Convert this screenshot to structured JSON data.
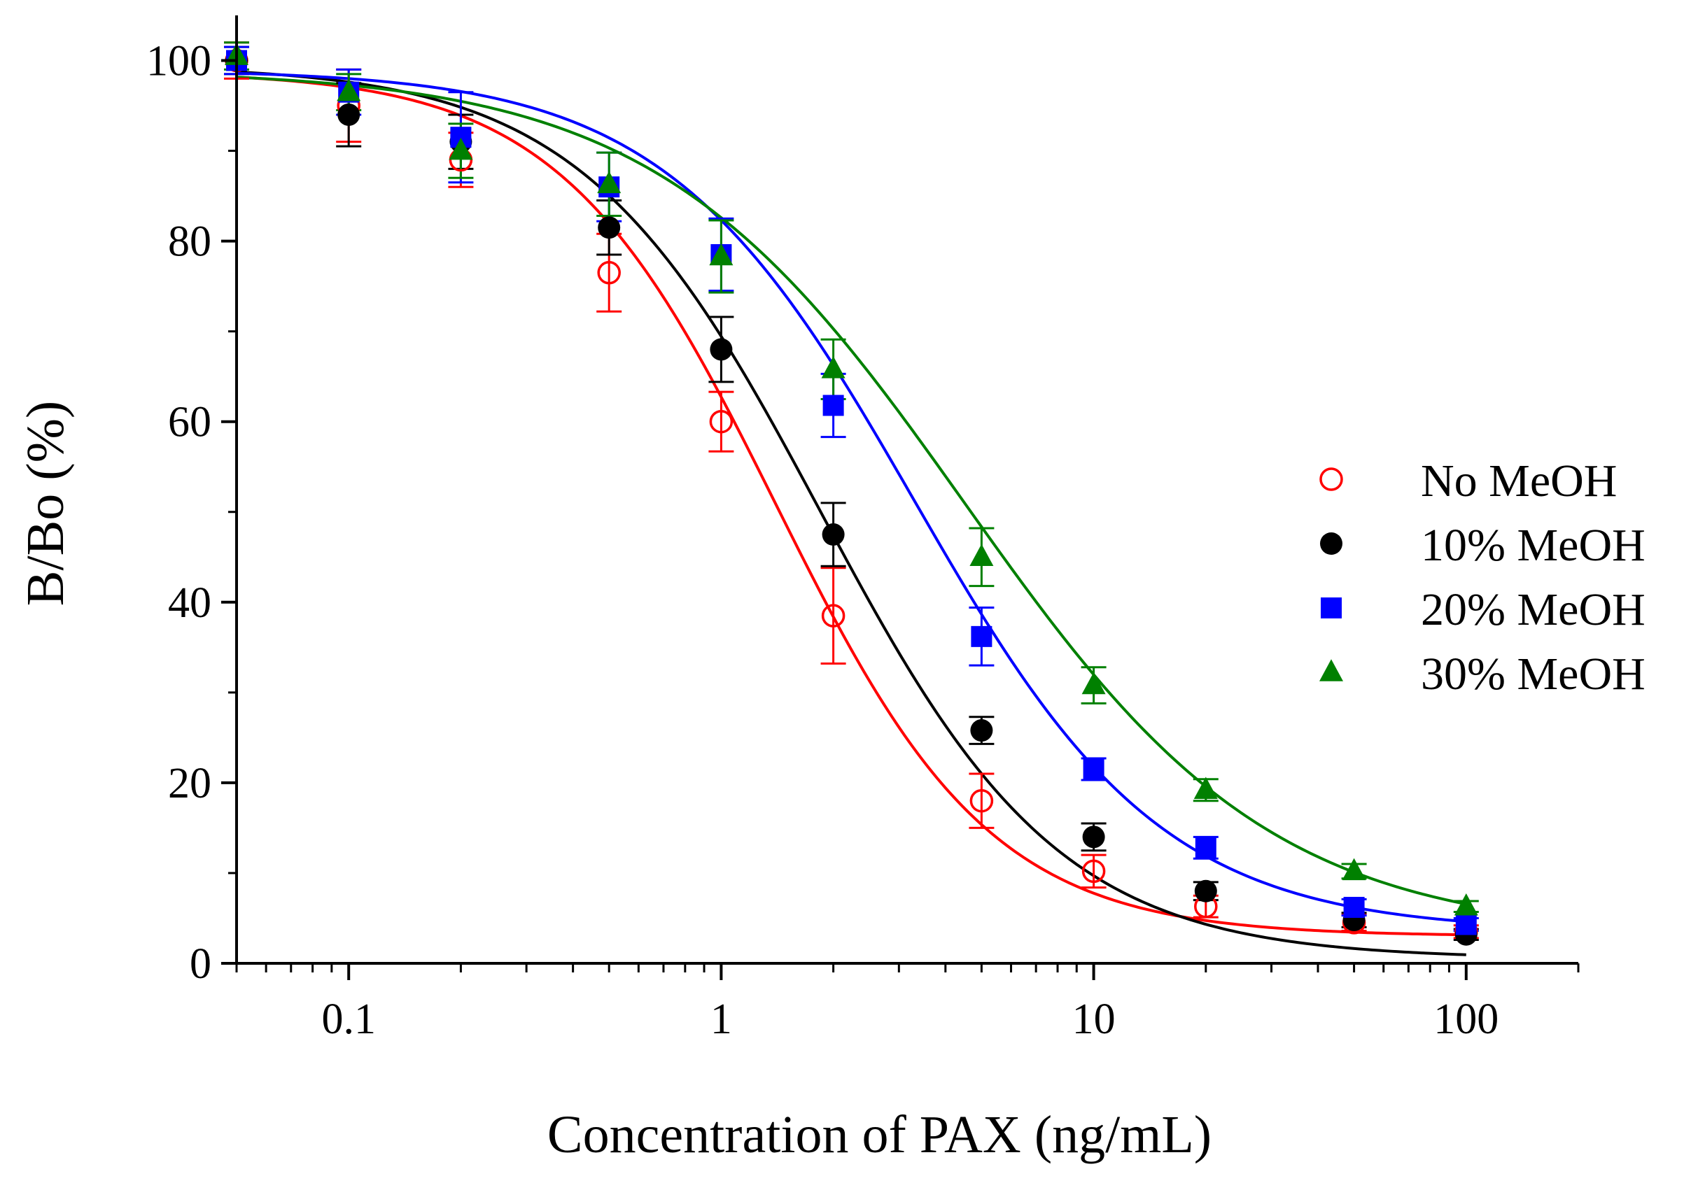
{
  "chart_data": {
    "type": "scatter",
    "xlabel": "Concentration of PAX (ng/mL)",
    "ylabel": "B/Bo (%)",
    "xscale": "log",
    "xlim": [
      0.05,
      200
    ],
    "ylim": [
      0,
      105
    ],
    "xticks": [
      0.1,
      1,
      10,
      100
    ],
    "xtick_labels": [
      "0.1",
      "1",
      "10",
      "100"
    ],
    "yticks": [
      0,
      20,
      40,
      60,
      80,
      100
    ],
    "ytick_labels": [
      "0",
      "20",
      "40",
      "60",
      "80",
      "100"
    ],
    "grid": false,
    "legend_position": "right",
    "x": [
      0.05,
      0.1,
      0.2,
      0.5,
      1,
      2,
      5,
      10,
      20,
      50,
      100
    ],
    "series": [
      {
        "name": "No MeOH",
        "marker": "open-circle",
        "color": "#ff0000",
        "y": [
          100,
          95,
          89,
          76.5,
          60,
          38.5,
          18,
          10.2,
          6.3,
          4.5,
          3.5
        ],
        "err": [
          2,
          4,
          3,
          4.3,
          3.3,
          5.3,
          3,
          1.8,
          1.2,
          0.9,
          0.7
        ],
        "fit": {
          "top": 98.8,
          "bottom": 3.0,
          "ic50": 1.4,
          "slope": 1.5
        }
      },
      {
        "name": "10% MeOH",
        "marker": "filled-circle",
        "color": "#000000",
        "y": [
          100,
          94,
          91,
          81.5,
          68,
          47.5,
          25.8,
          14,
          8,
          4.8,
          3.2
        ],
        "err": [
          1.5,
          3.5,
          3,
          3,
          3.6,
          3.5,
          1.5,
          1.5,
          1,
          0.8,
          0.6
        ],
        "fit": {
          "top": 99.5,
          "bottom": 0.5,
          "ic50": 1.85,
          "slope": 1.35
        }
      },
      {
        "name": "20% MeOH",
        "marker": "filled-square",
        "color": "#0000ff",
        "y": [
          100,
          96.5,
          91.5,
          86,
          78.5,
          61.8,
          36.2,
          21.5,
          12.8,
          6.2,
          4.3
        ],
        "err": [
          1.5,
          2.5,
          5,
          3.8,
          4,
          3.5,
          3.2,
          1.2,
          1.2,
          0.9,
          0.7
        ],
        "fit": {
          "top": 99.0,
          "bottom": 3.5,
          "ic50": 3.3,
          "slope": 1.3
        }
      },
      {
        "name": "30% MeOH",
        "marker": "filled-triangle",
        "color": "#008000",
        "y": [
          100.5,
          96.5,
          90,
          86.3,
          78.3,
          65.8,
          45,
          30.8,
          19.2,
          10.2,
          6.3
        ],
        "err": [
          1.5,
          2,
          3,
          3.5,
          4,
          3.3,
          3.2,
          2,
          1.2,
          0.8,
          0.6
        ],
        "fit": {
          "top": 99.0,
          "bottom": 3.0,
          "ic50": 4.5,
          "slope": 1.05
        }
      }
    ]
  }
}
